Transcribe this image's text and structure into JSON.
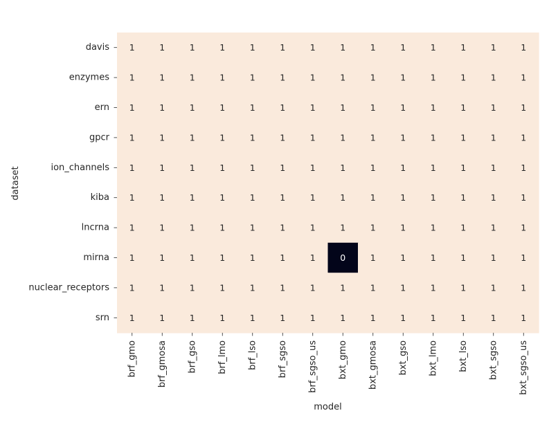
{
  "chart_data": {
    "type": "heatmap",
    "xlabel": "model",
    "ylabel": "dataset",
    "x_categories": [
      "brf_gmo",
      "brf_gmosa",
      "brf_gso",
      "brf_lmo",
      "brf_lso",
      "brf_sgso",
      "brf_sgso_us",
      "bxt_gmo",
      "bxt_gmosa",
      "bxt_gso",
      "bxt_lmo",
      "bxt_lso",
      "bxt_sgso",
      "bxt_sgso_us"
    ],
    "y_categories": [
      "davis",
      "enzymes",
      "ern",
      "gpcr",
      "ion_channels",
      "kiba",
      "lncrna",
      "mirna",
      "nuclear_receptors",
      "srn"
    ],
    "values": [
      [
        1,
        1,
        1,
        1,
        1,
        1,
        1,
        1,
        1,
        1,
        1,
        1,
        1,
        1
      ],
      [
        1,
        1,
        1,
        1,
        1,
        1,
        1,
        1,
        1,
        1,
        1,
        1,
        1,
        1
      ],
      [
        1,
        1,
        1,
        1,
        1,
        1,
        1,
        1,
        1,
        1,
        1,
        1,
        1,
        1
      ],
      [
        1,
        1,
        1,
        1,
        1,
        1,
        1,
        1,
        1,
        1,
        1,
        1,
        1,
        1
      ],
      [
        1,
        1,
        1,
        1,
        1,
        1,
        1,
        1,
        1,
        1,
        1,
        1,
        1,
        1
      ],
      [
        1,
        1,
        1,
        1,
        1,
        1,
        1,
        1,
        1,
        1,
        1,
        1,
        1,
        1
      ],
      [
        1,
        1,
        1,
        1,
        1,
        1,
        1,
        1,
        1,
        1,
        1,
        1,
        1,
        1
      ],
      [
        1,
        1,
        1,
        1,
        1,
        1,
        1,
        0,
        1,
        1,
        1,
        1,
        1,
        1
      ],
      [
        1,
        1,
        1,
        1,
        1,
        1,
        1,
        1,
        1,
        1,
        1,
        1,
        1,
        1
      ],
      [
        1,
        1,
        1,
        1,
        1,
        1,
        1,
        1,
        1,
        1,
        1,
        1,
        1,
        1
      ]
    ],
    "annotations": true,
    "colorbar": false,
    "colors": {
      "high": "#faeadc",
      "low": "#03051a",
      "text_on_high": "#262626",
      "text_on_low": "#ffffff"
    }
  }
}
